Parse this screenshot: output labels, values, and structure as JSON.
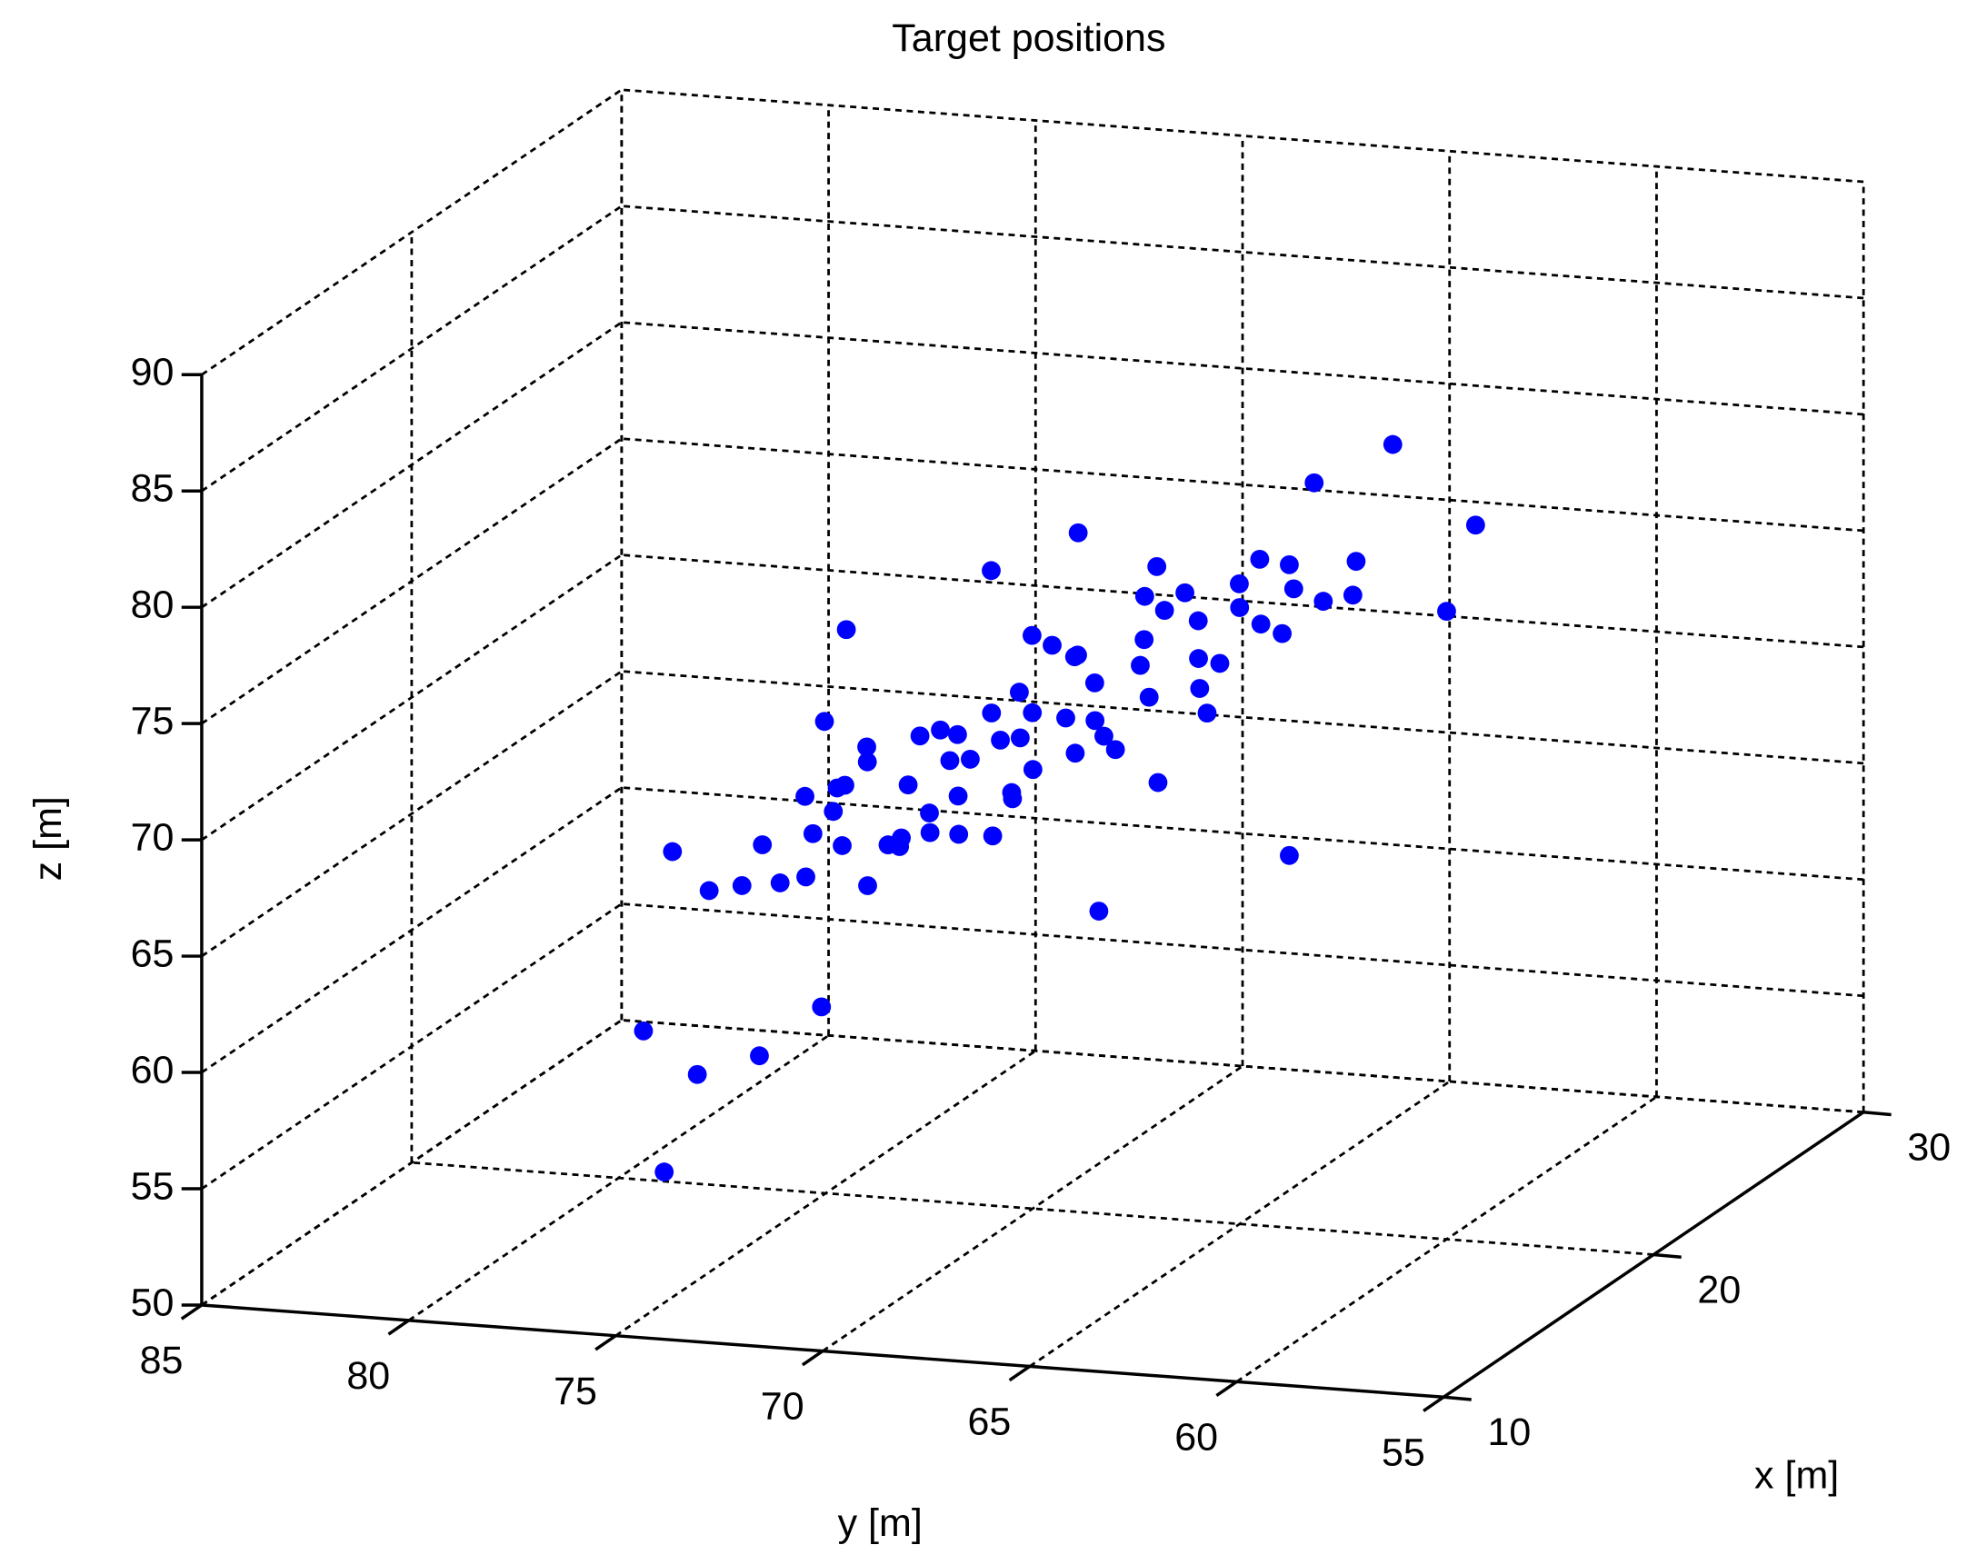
{
  "chart_data": {
    "type": "scatter3d",
    "title": "Target positions",
    "xlabel": "x [m]",
    "ylabel": "y [m]",
    "zlabel": "z [m]",
    "xlim": [
      10,
      30
    ],
    "ylim": [
      55,
      85
    ],
    "zlim": [
      50,
      90
    ],
    "xticks": [
      10,
      20,
      30
    ],
    "yticks": [
      55,
      60,
      65,
      70,
      75,
      80,
      85
    ],
    "zticks": [
      50,
      55,
      60,
      65,
      70,
      75,
      80,
      85,
      90
    ],
    "grid": true,
    "color": "#0000ff",
    "x": [
      20,
      17,
      23,
      19,
      22,
      18,
      21,
      16,
      20,
      24,
      18,
      21,
      19,
      22,
      17,
      23,
      20,
      15,
      25,
      19,
      21,
      18,
      22,
      16,
      20,
      24,
      19,
      21,
      17,
      23,
      20,
      22,
      18,
      20,
      25,
      19,
      21,
      16,
      23,
      20,
      22,
      18,
      20,
      24,
      19,
      21,
      17,
      23,
      20,
      22,
      18,
      25,
      20,
      21,
      19,
      20,
      18,
      22,
      20,
      21,
      19,
      23,
      17,
      20,
      22,
      18,
      24,
      16,
      20,
      21,
      20,
      20,
      20,
      20,
      20,
      20,
      20,
      20,
      20,
      20,
      20,
      20,
      20,
      20,
      20
    ],
    "y": [
      76.1,
      75.5,
      77.0,
      74.8,
      75.0,
      76.8,
      74.0,
      74.5,
      74.6,
      75.2,
      73.8,
      73.0,
      72.5,
      72.8,
      73.2,
      74.0,
      71.8,
      72.0,
      73.5,
      71.0,
      70.5,
      70.8,
      71.5,
      70.2,
      70.3,
      71.0,
      69.5,
      69.0,
      68.8,
      69.8,
      68.5,
      68.2,
      67.9,
      67.4,
      68.5,
      66.8,
      66.5,
      67.5,
      67.0,
      66.0,
      65.5,
      65.8,
      65.0,
      66.0,
      64.5,
      64.2,
      64.8,
      64.5,
      63.8,
      63.2,
      63.5,
      64.8,
      72.0,
      71.5,
      70.0,
      69.2,
      72.2,
      70.0,
      68.0,
      67.8,
      73.5,
      72.3,
      71.2,
      75.5,
      66.8,
      69.0,
      69.0,
      73.0,
      67.0,
      74.5,
      61.3,
      59.3,
      78.9,
      79.4,
      78.1,
      76.6,
      63.8,
      60.0,
      63.2,
      78.7,
      75.1,
      68.4,
      74.5,
      68.9,
      71.0
    ],
    "z": [
      63.2,
      65.0,
      61.5,
      66.1,
      62.0,
      64.0,
      64.5,
      67.5,
      65.0,
      62.8,
      67.8,
      66.0,
      68.5,
      64.5,
      69.5,
      63.8,
      67.5,
      71.0,
      62.5,
      69.8,
      68.2,
      71.5,
      66.2,
      73.0,
      70.2,
      67.0,
      72.0,
      70.5,
      74.2,
      68.5,
      72.8,
      71.0,
      75.3,
      73.7,
      69.5,
      75.5,
      73.5,
      77.0,
      72.0,
      75.8,
      74.5,
      77.5,
      76.5,
      72.8,
      78.2,
      76.8,
      79.0,
      75.0,
      78.5,
      77.5,
      80.0,
      74.0,
      69.0,
      70.5,
      68.5,
      71.2,
      66.5,
      72.5,
      70.0,
      76.0,
      70.0,
      68.0,
      72.0,
      67.0,
      70.5,
      76.0,
      66.0,
      73.0,
      78.0,
      68.0,
      84.0,
      80.8,
      50.4,
      56.4,
      54.7,
      55.7,
      66.0,
      77.0,
      82.1,
      64.2,
      58.0,
      63.0,
      74.3,
      79.2,
      77.3
    ]
  }
}
